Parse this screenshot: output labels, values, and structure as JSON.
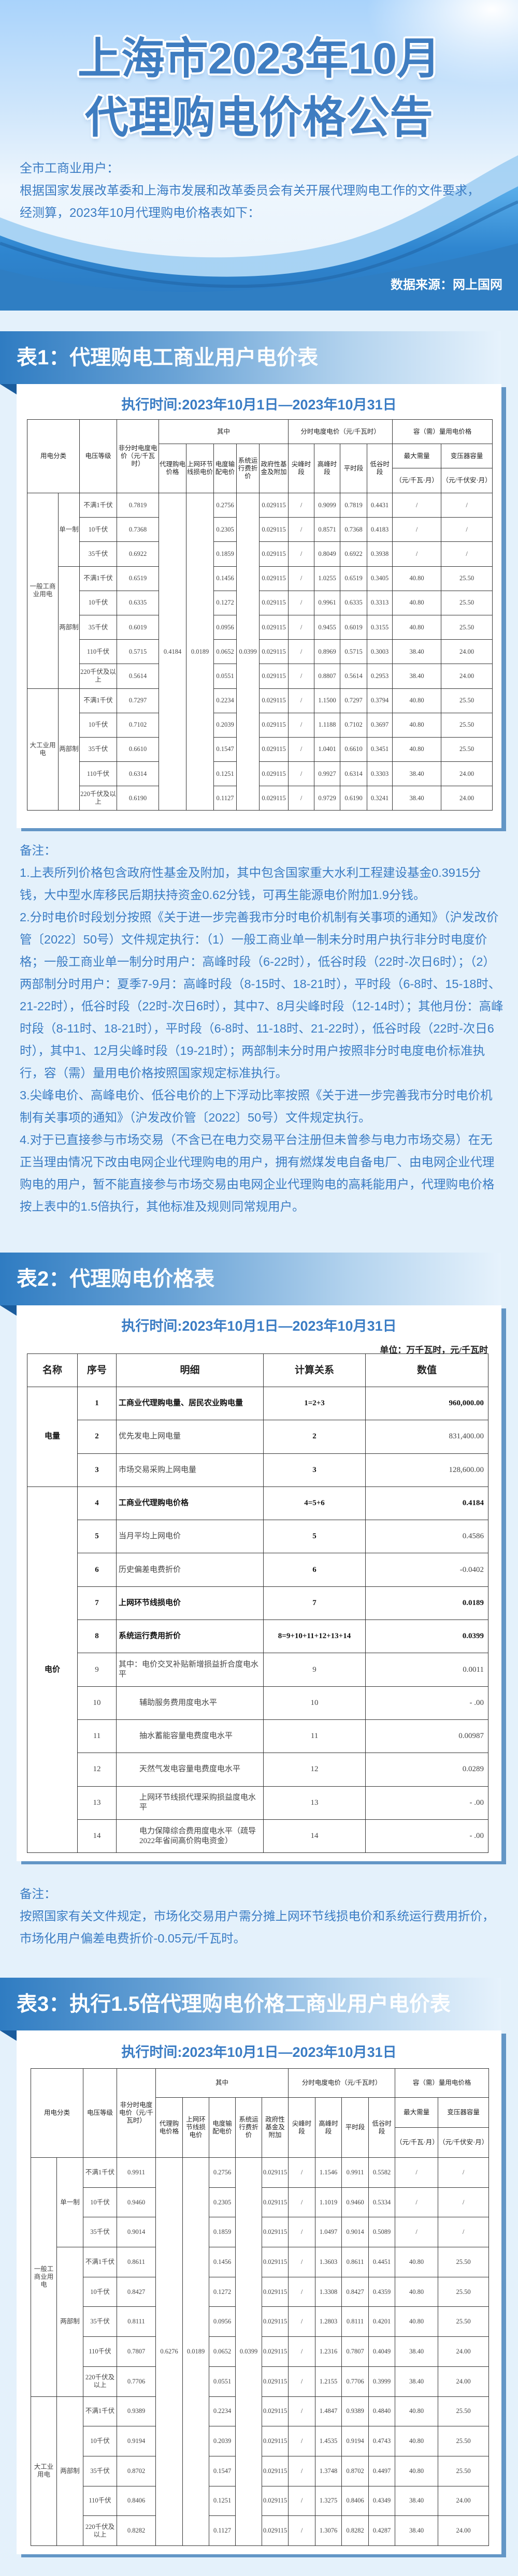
{
  "header": {
    "title_line1": "上海市2023年10月",
    "title_line2": "代理购电价格公告",
    "greeting": "全市工商业用户：",
    "intro_line1": "根据国家发展改革委和上海市发展和改革委员会有关开展代理购电工作的文件要求，",
    "intro_line2": "经测算，2023年10月代理购电价格表如下：",
    "source": "数据来源：网上国网"
  },
  "colors": {
    "accent": "#3a7cc4",
    "bar_start": "#2f7cc2",
    "background": "#e4f1fb",
    "wave": "#2d7dc4"
  },
  "table1": {
    "heading": "表1：代理购电工商业用户电价表",
    "period": "执行时间:2023年10月1日—2023年10月31日",
    "headers": {
      "category": "用电分类",
      "voltage": "电压等级",
      "nontou": "非分时电度电价（元/千瓦时）",
      "of_which": "其中",
      "tou": "分时电度电价（元/千瓦时）",
      "capacity": "容（需）量用电价格",
      "agency": "代理购电价格",
      "lineloss": "上网环节线损电价",
      "tdist": "电度输配电价",
      "sysop": "系统运行费折价",
      "govfund": "政府性基金及附加",
      "sharp": "尖峰时段",
      "peak": "高峰时段",
      "flat": "平时段",
      "valley": "低谷时段",
      "demand": "最大需量",
      "transformer": "变压器容量",
      "demand_unit": "（元/千瓦·月）",
      "transformer_unit": "（元/千伏安·月）"
    },
    "merged": {
      "agency": "0.4184",
      "lineloss": "0.0189",
      "sysop": "0.0399"
    },
    "groups": [
      {
        "category": "一般工商业用电",
        "systems": [
          {
            "system": "单一制",
            "rows": [
              [
                "不满1千伏",
                "0.7819",
                "0.2756",
                "0.029115",
                "/",
                "0.9099",
                "0.7819",
                "0.4431",
                "/",
                "/"
              ],
              [
                "10千伏",
                "0.7368",
                "0.2305",
                "0.029115",
                "/",
                "0.8571",
                "0.7368",
                "0.4183",
                "/",
                "/"
              ],
              [
                "35千伏",
                "0.6922",
                "0.1859",
                "0.029115",
                "/",
                "0.8049",
                "0.6922",
                "0.3938",
                "/",
                "/"
              ]
            ]
          },
          {
            "system": "两部制",
            "rows": [
              [
                "不满1千伏",
                "0.6519",
                "0.1456",
                "0.029115",
                "/",
                "1.0255",
                "0.6519",
                "0.3405",
                "40.80",
                "25.50"
              ],
              [
                "10千伏",
                "0.6335",
                "0.1272",
                "0.029115",
                "/",
                "0.9961",
                "0.6335",
                "0.3313",
                "40.80",
                "25.50"
              ],
              [
                "35千伏",
                "0.6019",
                "0.0956",
                "0.029115",
                "/",
                "0.9455",
                "0.6019",
                "0.3155",
                "40.80",
                "25.50"
              ],
              [
                "110千伏",
                "0.5715",
                "0.0652",
                "0.029115",
                "/",
                "0.8969",
                "0.5715",
                "0.3003",
                "38.40",
                "24.00"
              ],
              [
                "220千伏及以上",
                "0.5614",
                "0.0551",
                "0.029115",
                "/",
                "0.8807",
                "0.5614",
                "0.2953",
                "38.40",
                "24.00"
              ]
            ]
          }
        ]
      },
      {
        "category": "大工业用电",
        "systems": [
          {
            "system": "两部制",
            "rows": [
              [
                "不满1千伏",
                "0.7297",
                "0.2234",
                "0.029115",
                "/",
                "1.1500",
                "0.7297",
                "0.3794",
                "40.80",
                "25.50"
              ],
              [
                "10千伏",
                "0.7102",
                "0.2039",
                "0.029115",
                "/",
                "1.1188",
                "0.7102",
                "0.3697",
                "40.80",
                "25.50"
              ],
              [
                "35千伏",
                "0.6610",
                "0.1547",
                "0.029115",
                "/",
                "1.0401",
                "0.6610",
                "0.3451",
                "40.80",
                "25.50"
              ],
              [
                "110千伏",
                "0.6314",
                "0.1251",
                "0.029115",
                "/",
                "0.9927",
                "0.6314",
                "0.3303",
                "38.40",
                "24.00"
              ],
              [
                "220千伏及以上",
                "0.6190",
                "0.1127",
                "0.029115",
                "/",
                "0.9729",
                "0.6190",
                "0.3241",
                "38.40",
                "24.00"
              ]
            ]
          }
        ]
      }
    ]
  },
  "notes1": {
    "title": "备注：",
    "items": [
      "1.上表所列价格包含政府性基金及附加，其中包含国家重大水利工程建设基金0.3915分钱，大中型水库移民后期扶持资金0.62分钱，可再生能源电价附加1.9分钱。",
      "2.分时电价时段划分按照《关于进一步完善我市分时电价机制有关事项的通知》（沪发改价管〔2022〕50号）文件规定执行：（1）一般工商业单一制未分时用户执行非分时电度价格；一般工商业单一制分时用户：高峰时段（6-22时），低谷时段（22时-次日6时）；（2）两部制分时用户：夏季7-9月：高峰时段（8-15时、18-21时），平时段（6-8时、15-18时、21-22时），低谷时段（22时-次日6时），其中7、8月尖峰时段（12-14时）；其他月份：高峰时段（8-11时、18-21时），平时段（6-8时、11-18时、21-22时），低谷时段（22时-次日6时），其中1、12月尖峰时段（19-21时）；两部制未分时用户按照非分时电度电价标准执行，容（需）量用电价格按照国家规定标准执行。",
      "3.尖峰电价、高峰电价、低谷电价的上下浮动比率按照《关于进一步完善我市分时电价机制有关事项的通知》（沪发改价管〔2022〕50号）文件规定执行。",
      "4.对于已直接参与市场交易（不含已在电力交易平台注册但未曾参与电力市场交易）在无正当理由情况下改由电网企业代理购电的用户，拥有燃煤发电自备电厂、由电网企业代理购电的用户，暂不能直接参与市场交易由电网企业代理购电的高耗能用户，代理购电价格按上表中的1.5倍执行，其他标准及规则同常规用户。"
    ]
  },
  "table2": {
    "heading": "表2：代理购电价格表",
    "period": "执行时间:2023年10月1日—2023年10月31日",
    "unit": "单位：万千瓦时，元/千瓦时",
    "headers": [
      "名称",
      "序号",
      "明细",
      "计算关系",
      "数值"
    ],
    "groups": [
      {
        "name": "电量",
        "rows": [
          {
            "no": "1",
            "detail": "工商业代理购电量、居民农业购电量",
            "calc": "1=2+3",
            "value": "960,000.00",
            "bold": true
          },
          {
            "no": "2",
            "detail": "优先发电上网电量",
            "calc": "2",
            "value": "831,400.00"
          },
          {
            "no": "3",
            "detail": "市场交易采购上网电量",
            "calc": "3",
            "value": "128,600.00"
          }
        ]
      },
      {
        "name": "电价",
        "rows": [
          {
            "no": "4",
            "detail": "工商业代理购电价格",
            "calc": "4=5+6",
            "value": "0.4184",
            "bold": true
          },
          {
            "no": "5",
            "detail": "当月平均上网电价",
            "calc": "5",
            "value": "0.4586"
          },
          {
            "no": "6",
            "detail": "历史偏差电费折价",
            "calc": "6",
            "value": "-0.0402"
          },
          {
            "no": "7",
            "detail": "上网环节线损电价",
            "calc": "7",
            "value": "0.0189",
            "bold": true
          },
          {
            "no": "8",
            "detail": "系统运行费用折价",
            "calc": "8=9+10+11+12+13+14",
            "value": "0.0399",
            "bold": true
          },
          {
            "no": "9",
            "detail": "其中：电价交叉补贴新增损益折合度电水平",
            "calc": "9",
            "value": "0.0011"
          },
          {
            "no": "10",
            "detail": "辅助服务费用度电水平",
            "calc": "10",
            "value": "-  .00",
            "indent": true
          },
          {
            "no": "11",
            "detail": "抽水蓄能容量电费度电水平",
            "calc": "11",
            "value": "0.00987",
            "indent": true
          },
          {
            "no": "12",
            "detail": "天然气发电容量电费度电水平",
            "calc": "12",
            "value": "0.0289",
            "indent": true
          },
          {
            "no": "13",
            "detail": "上网环节线损代理采购损益度电水平",
            "calc": "13",
            "value": "-  .00",
            "indent": true
          },
          {
            "no": "14",
            "detail": "电力保障综合费用度电水平（疏导2022年省间高价购电资金）",
            "calc": "14",
            "value": "-  .00",
            "indent": true
          }
        ]
      }
    ]
  },
  "notes2": {
    "title": "备注：",
    "line1": "按照国家有关文件规定，市场化交易用户需分摊上网环节线损电价和系统运行费用折价，",
    "line2": "市场化用户偏差电费折价-0.05元/千瓦时。"
  },
  "table3": {
    "heading": "表3：执行1.5倍代理购电价格工商业用户电价表",
    "period": "执行时间:2023年10月1日—2023年10月31日",
    "merged": {
      "agency": "0.6276",
      "lineloss": "0.0189",
      "sysop": "0.0399"
    },
    "groups": [
      {
        "category": "一般工商业用电",
        "systems": [
          {
            "system": "单一制",
            "rows": [
              [
                "不满1千伏",
                "0.9911",
                "0.2756",
                "0.029115",
                "/",
                "1.1546",
                "0.9911",
                "0.5582",
                "/",
                "/"
              ],
              [
                "10千伏",
                "0.9460",
                "0.2305",
                "0.029115",
                "/",
                "1.1019",
                "0.9460",
                "0.5334",
                "/",
                "/"
              ],
              [
                "35千伏",
                "0.9014",
                "0.1859",
                "0.029115",
                "/",
                "1.0497",
                "0.9014",
                "0.5089",
                "/",
                "/"
              ]
            ]
          },
          {
            "system": "两部制",
            "rows": [
              [
                "不满1千伏",
                "0.8611",
                "0.1456",
                "0.029115",
                "/",
                "1.3603",
                "0.8611",
                "0.4451",
                "40.80",
                "25.50"
              ],
              [
                "10千伏",
                "0.8427",
                "0.1272",
                "0.029115",
                "/",
                "1.3308",
                "0.8427",
                "0.4359",
                "40.80",
                "25.50"
              ],
              [
                "35千伏",
                "0.8111",
                "0.0956",
                "0.029115",
                "/",
                "1.2803",
                "0.8111",
                "0.4201",
                "40.80",
                "25.50"
              ],
              [
                "110千伏",
                "0.7807",
                "0.0652",
                "0.029115",
                "/",
                "1.2316",
                "0.7807",
                "0.4049",
                "38.40",
                "24.00"
              ],
              [
                "220千伏及以上",
                "0.7706",
                "0.0551",
                "0.029115",
                "/",
                "1.2155",
                "0.7706",
                "0.3999",
                "38.40",
                "24.00"
              ]
            ]
          }
        ]
      },
      {
        "category": "大工业用电",
        "systems": [
          {
            "system": "两部制",
            "rows": [
              [
                "不满1千伏",
                "0.9389",
                "0.2234",
                "0.029115",
                "/",
                "1.4847",
                "0.9389",
                "0.4840",
                "40.80",
                "25.50"
              ],
              [
                "10千伏",
                "0.9194",
                "0.2039",
                "0.029115",
                "/",
                "1.4535",
                "0.9194",
                "0.4743",
                "40.80",
                "25.50"
              ],
              [
                "35千伏",
                "0.8702",
                "0.1547",
                "0.029115",
                "/",
                "1.3748",
                "0.8702",
                "0.4497",
                "40.80",
                "25.50"
              ],
              [
                "110千伏",
                "0.8406",
                "0.1251",
                "0.029115",
                "/",
                "1.3275",
                "0.8406",
                "0.4349",
                "38.40",
                "24.00"
              ],
              [
                "220千伏及以上",
                "0.8282",
                "0.1127",
                "0.029115",
                "/",
                "1.3076",
                "0.8282",
                "0.4287",
                "38.40",
                "24.00"
              ]
            ]
          }
        ]
      }
    ]
  }
}
